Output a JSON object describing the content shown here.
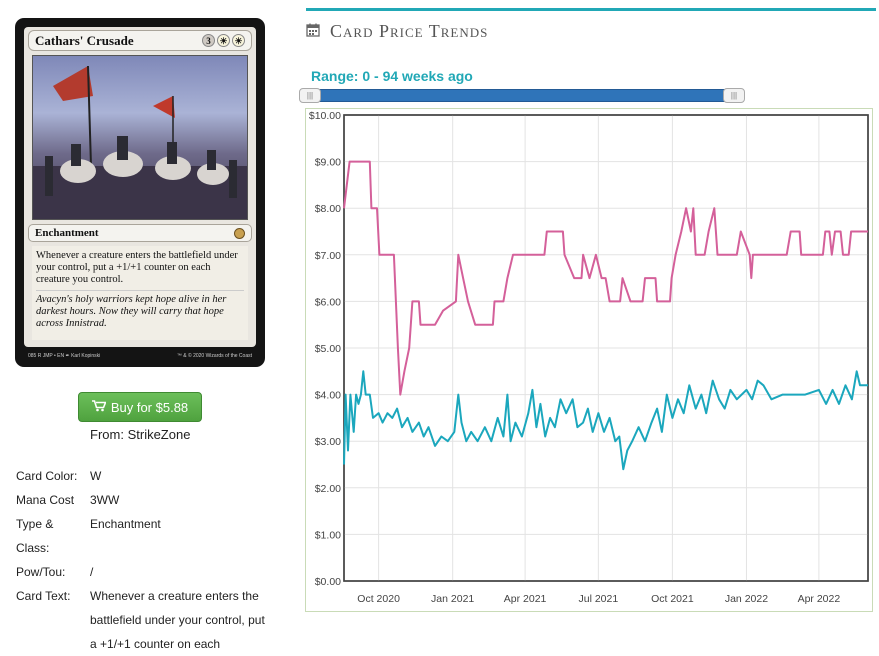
{
  "card": {
    "name": "Cathars' Crusade",
    "mana": [
      "3",
      "W",
      "W"
    ],
    "type_line": "Enchantment",
    "rules_text": "Whenever a creature enters the battlefield under your control, put a +1/+1 counter on each creature you control.",
    "flavor_text": "Avacyn's holy warriors kept hope alive in her darkest hours. Now they will carry that hope across Innistrad.",
    "footer_left": "085 R JMP • EN ✒ Karl Kopinski",
    "footer_right": "™ & © 2020 Wizards of the Coast"
  },
  "buy": {
    "label": "Buy for $5.88",
    "icon": "cart-icon"
  },
  "from": {
    "label": "From:",
    "vendor": "StrikeZone"
  },
  "info": [
    {
      "label": "Card Color:",
      "value": "W"
    },
    {
      "label": "Mana Cost",
      "value": "3WW"
    },
    {
      "label": "Type & Class:",
      "value": "Enchantment"
    },
    {
      "label": "Pow/Tou:",
      "value": "/"
    },
    {
      "label": "Card Text:",
      "value": "Whenever a creature enters the battlefield under your control, put a +1/+1 counter on each"
    }
  ],
  "section": {
    "title": "Card Price Trends",
    "icon": "calendar-icon"
  },
  "range": {
    "label": "Range: 0 - 94 weeks ago",
    "min": 0,
    "max": 94
  },
  "colors": {
    "accent": "#21a8b6",
    "slider": "#2f74b9",
    "series_pink": "#d4609a",
    "series_teal": "#1ba7bd",
    "buy_green": "#5cb048"
  },
  "chart_data": {
    "type": "line",
    "ylim": [
      0,
      10
    ],
    "y_ticks": [
      "$0.00",
      "$1.00",
      "$2.00",
      "$3.00",
      "$4.00",
      "$5.00",
      "$6.00",
      "$7.00",
      "$8.00",
      "$9.00",
      "$10.00"
    ],
    "x_ticks": [
      "Oct 2020",
      "Jan 2021",
      "Apr 2021",
      "Jul 2021",
      "Oct 2021",
      "Jan 2022",
      "Apr 2022"
    ],
    "xlim": [
      "2020-08-19",
      "2022-06-01"
    ],
    "grid": true,
    "series": [
      {
        "color": "#d4609a",
        "points": [
          [
            "2020-08-19",
            8.0
          ],
          [
            "2020-08-26",
            9.0
          ],
          [
            "2020-09-20",
            9.0
          ],
          [
            "2020-09-22",
            8.0
          ],
          [
            "2020-09-29",
            8.0
          ],
          [
            "2020-10-02",
            7.0
          ],
          [
            "2020-10-20",
            7.0
          ],
          [
            "2020-10-25",
            5.0
          ],
          [
            "2020-10-28",
            4.0
          ],
          [
            "2020-11-02",
            4.5
          ],
          [
            "2020-11-08",
            5.0
          ],
          [
            "2020-11-12",
            6.0
          ],
          [
            "2020-11-20",
            6.0
          ],
          [
            "2020-11-22",
            5.5
          ],
          [
            "2020-12-10",
            5.5
          ],
          [
            "2020-12-20",
            5.8
          ],
          [
            "2021-01-05",
            6.0
          ],
          [
            "2021-01-08",
            7.0
          ],
          [
            "2021-01-14",
            6.5
          ],
          [
            "2021-01-20",
            6.0
          ],
          [
            "2021-01-29",
            5.5
          ],
          [
            "2021-02-20",
            5.5
          ],
          [
            "2021-02-22",
            6.0
          ],
          [
            "2021-03-05",
            6.0
          ],
          [
            "2021-03-10",
            6.5
          ],
          [
            "2021-03-17",
            7.0
          ],
          [
            "2021-04-25",
            7.0
          ],
          [
            "2021-04-28",
            7.5
          ],
          [
            "2021-05-18",
            7.5
          ],
          [
            "2021-05-20",
            7.0
          ],
          [
            "2021-06-01",
            6.5
          ],
          [
            "2021-06-10",
            6.5
          ],
          [
            "2021-06-12",
            7.0
          ],
          [
            "2021-06-20",
            6.5
          ],
          [
            "2021-06-28",
            7.0
          ],
          [
            "2021-07-05",
            6.5
          ],
          [
            "2021-07-10",
            6.5
          ],
          [
            "2021-07-15",
            6.0
          ],
          [
            "2021-07-28",
            6.0
          ],
          [
            "2021-07-31",
            6.5
          ],
          [
            "2021-08-10",
            6.0
          ],
          [
            "2021-08-25",
            6.0
          ],
          [
            "2021-08-28",
            6.5
          ],
          [
            "2021-09-10",
            6.5
          ],
          [
            "2021-09-12",
            6.0
          ],
          [
            "2021-09-28",
            6.0
          ],
          [
            "2021-09-30",
            6.5
          ],
          [
            "2021-10-05",
            7.0
          ],
          [
            "2021-10-12",
            7.5
          ],
          [
            "2021-10-18",
            8.0
          ],
          [
            "2021-10-24",
            7.5
          ],
          [
            "2021-10-27",
            8.0
          ],
          [
            "2021-10-30",
            7.0
          ],
          [
            "2021-11-10",
            7.0
          ],
          [
            "2021-11-15",
            7.5
          ],
          [
            "2021-11-22",
            8.0
          ],
          [
            "2021-11-26",
            7.0
          ],
          [
            "2021-12-20",
            7.0
          ],
          [
            "2021-12-25",
            7.5
          ],
          [
            "2022-01-05",
            7.0
          ],
          [
            "2022-01-07",
            6.5
          ],
          [
            "2022-01-09",
            7.0
          ],
          [
            "2022-02-20",
            7.0
          ],
          [
            "2022-02-25",
            7.5
          ],
          [
            "2022-03-08",
            7.5
          ],
          [
            "2022-03-10",
            7.0
          ],
          [
            "2022-04-06",
            7.0
          ],
          [
            "2022-04-09",
            7.5
          ],
          [
            "2022-04-14",
            7.5
          ],
          [
            "2022-04-17",
            7.0
          ],
          [
            "2022-04-21",
            7.5
          ],
          [
            "2022-04-28",
            7.5
          ],
          [
            "2022-05-01",
            7.0
          ],
          [
            "2022-05-08",
            7.0
          ],
          [
            "2022-05-11",
            7.5
          ],
          [
            "2022-06-01",
            7.5
          ]
        ]
      },
      {
        "color": "#1ba7bd",
        "points": [
          [
            "2020-08-19",
            2.5
          ],
          [
            "2020-08-21",
            4.0
          ],
          [
            "2020-08-24",
            2.8
          ],
          [
            "2020-08-27",
            4.0
          ],
          [
            "2020-08-31",
            3.2
          ],
          [
            "2020-09-03",
            4.0
          ],
          [
            "2020-09-06",
            3.8
          ],
          [
            "2020-09-09",
            4.0
          ],
          [
            "2020-09-12",
            4.5
          ],
          [
            "2020-09-15",
            4.0
          ],
          [
            "2020-09-20",
            4.0
          ],
          [
            "2020-09-24",
            3.5
          ],
          [
            "2020-10-01",
            3.6
          ],
          [
            "2020-10-06",
            3.4
          ],
          [
            "2020-10-12",
            3.6
          ],
          [
            "2020-10-18",
            3.5
          ],
          [
            "2020-10-24",
            3.7
          ],
          [
            "2020-10-30",
            3.3
          ],
          [
            "2020-11-06",
            3.5
          ],
          [
            "2020-11-12",
            3.2
          ],
          [
            "2020-11-20",
            3.4
          ],
          [
            "2020-11-26",
            3.1
          ],
          [
            "2020-12-02",
            3.3
          ],
          [
            "2020-12-10",
            2.9
          ],
          [
            "2020-12-18",
            3.1
          ],
          [
            "2020-12-26",
            3.0
          ],
          [
            "2021-01-03",
            3.2
          ],
          [
            "2021-01-08",
            4.0
          ],
          [
            "2021-01-12",
            3.4
          ],
          [
            "2021-01-18",
            3.0
          ],
          [
            "2021-01-24",
            3.2
          ],
          [
            "2021-02-01",
            3.0
          ],
          [
            "2021-02-10",
            3.3
          ],
          [
            "2021-02-18",
            3.0
          ],
          [
            "2021-02-26",
            3.5
          ],
          [
            "2021-03-05",
            3.1
          ],
          [
            "2021-03-10",
            4.0
          ],
          [
            "2021-03-14",
            3.0
          ],
          [
            "2021-03-20",
            3.4
          ],
          [
            "2021-03-28",
            3.1
          ],
          [
            "2021-04-05",
            3.6
          ],
          [
            "2021-04-10",
            4.1
          ],
          [
            "2021-04-15",
            3.3
          ],
          [
            "2021-04-20",
            3.8
          ],
          [
            "2021-04-26",
            3.1
          ],
          [
            "2021-05-02",
            3.5
          ],
          [
            "2021-05-08",
            3.3
          ],
          [
            "2021-05-15",
            3.9
          ],
          [
            "2021-05-22",
            3.6
          ],
          [
            "2021-05-30",
            3.9
          ],
          [
            "2021-06-05",
            3.3
          ],
          [
            "2021-06-12",
            3.4
          ],
          [
            "2021-06-18",
            3.7
          ],
          [
            "2021-06-24",
            3.2
          ],
          [
            "2021-07-01",
            3.6
          ],
          [
            "2021-07-08",
            3.2
          ],
          [
            "2021-07-15",
            3.5
          ],
          [
            "2021-07-22",
            3.0
          ],
          [
            "2021-07-27",
            3.1
          ],
          [
            "2021-08-01",
            2.4
          ],
          [
            "2021-08-06",
            2.8
          ],
          [
            "2021-08-12",
            3.0
          ],
          [
            "2021-08-20",
            3.3
          ],
          [
            "2021-08-28",
            3.0
          ],
          [
            "2021-09-05",
            3.4
          ],
          [
            "2021-09-12",
            3.7
          ],
          [
            "2021-09-18",
            3.2
          ],
          [
            "2021-09-24",
            4.0
          ],
          [
            "2021-10-01",
            3.5
          ],
          [
            "2021-10-08",
            3.9
          ],
          [
            "2021-10-15",
            3.6
          ],
          [
            "2021-10-22",
            4.2
          ],
          [
            "2021-10-30",
            3.7
          ],
          [
            "2021-11-06",
            4.0
          ],
          [
            "2021-11-12",
            3.6
          ],
          [
            "2021-11-20",
            4.3
          ],
          [
            "2021-11-28",
            3.9
          ],
          [
            "2021-12-05",
            3.7
          ],
          [
            "2021-12-12",
            4.1
          ],
          [
            "2021-12-20",
            3.9
          ],
          [
            "2022-01-01",
            4.1
          ],
          [
            "2022-01-08",
            3.9
          ],
          [
            "2022-01-15",
            4.3
          ],
          [
            "2022-01-22",
            4.2
          ],
          [
            "2022-02-01",
            3.9
          ],
          [
            "2022-02-15",
            4.0
          ],
          [
            "2022-03-01",
            4.0
          ],
          [
            "2022-03-15",
            4.0
          ],
          [
            "2022-04-01",
            4.1
          ],
          [
            "2022-04-10",
            3.8
          ],
          [
            "2022-04-18",
            4.1
          ],
          [
            "2022-04-26",
            3.8
          ],
          [
            "2022-05-04",
            4.2
          ],
          [
            "2022-05-12",
            3.9
          ],
          [
            "2022-05-18",
            4.5
          ],
          [
            "2022-05-22",
            4.2
          ],
          [
            "2022-06-01",
            4.2
          ]
        ]
      }
    ]
  }
}
